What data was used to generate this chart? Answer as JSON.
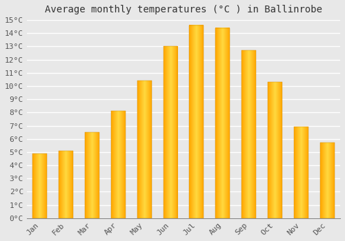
{
  "title": "Average monthly temperatures (°C ) in Ballinrobe",
  "months": [
    "Jan",
    "Feb",
    "Mar",
    "Apr",
    "May",
    "Jun",
    "Jul",
    "Aug",
    "Sep",
    "Oct",
    "Nov",
    "Dec"
  ],
  "values": [
    4.9,
    5.1,
    6.5,
    8.1,
    10.4,
    13.0,
    14.6,
    14.4,
    12.7,
    10.3,
    6.9,
    5.7
  ],
  "bar_color_main": "#FFA500",
  "bar_color_light": "#FFD050",
  "ylim": [
    0,
    15
  ],
  "yticks": [
    0,
    1,
    2,
    3,
    4,
    5,
    6,
    7,
    8,
    9,
    10,
    11,
    12,
    13,
    14,
    15
  ],
  "ylabel_suffix": "°C",
  "background_color": "#E8E8E8",
  "grid_color": "#FFFFFF",
  "title_fontsize": 10,
  "tick_fontsize": 8,
  "font_family": "monospace",
  "bar_width": 0.55
}
